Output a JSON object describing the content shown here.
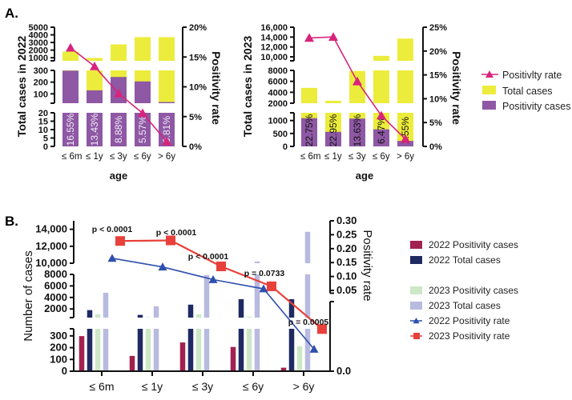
{
  "panel_labels": {
    "a": "A.",
    "b": "B."
  },
  "colors": {
    "total_yellow": "#ecec3c",
    "positive_purple": "#8e58a4",
    "rate_magenta": "#d8247c",
    "b_2022_pos": "#a3214f",
    "b_2022_total": "#1f2a62",
    "b_2023_pos": "#cde8c6",
    "b_2023_total": "#b8badf",
    "b_2022_rate": "#2f4fae",
    "b_2023_rate": "#e8403a"
  },
  "legend_a": [
    {
      "label": "Positivlty rate",
      "icon": "triangle-line"
    },
    {
      "label": "Total cases",
      "icon": "yellow-box"
    },
    {
      "label": "Positivity cases",
      "icon": "purple-box"
    }
  ],
  "legend_b": [
    {
      "label": "2022 Positivity cases",
      "icon": "box"
    },
    {
      "label": "2022 Total cases",
      "icon": "box"
    },
    {
      "label": "2023 Positivity cases",
      "icon": "box"
    },
    {
      "label": "2023 Total cases",
      "icon": "box"
    },
    {
      "label": "2022 Positivity rate",
      "icon": "triangle-line"
    },
    {
      "label": "2023 Positivity rate",
      "icon": "square-line"
    }
  ],
  "chart_data": [
    {
      "type": "bar",
      "stacked_overlay": true,
      "broken_axis": true,
      "categories": [
        "≤ 6m",
        "≤ 1y",
        "≤ 3y",
        "≤ 6y",
        "> 6y"
      ],
      "xlabel": "age",
      "ylabel": "Total cases in 2022",
      "y2label": "Positivity rate",
      "yticks": [
        [
          "5000",
          "4000",
          "3000",
          "2000",
          "1000"
        ],
        [
          "300",
          "200",
          "100"
        ],
        [
          "20",
          "15",
          "10",
          "5",
          "0"
        ]
      ],
      "y2ticks": [
        "20%",
        "15%",
        "10%",
        "5%",
        "0%"
      ],
      "y2lim": [
        0,
        20
      ],
      "series": [
        {
          "name": "Total cases",
          "values": [
            1800,
            970,
            2750,
            3700,
            3700
          ]
        },
        {
          "name": "Positivity cases",
          "values": [
            298,
            130,
            244,
            206,
            30
          ]
        },
        {
          "name": "Positivlty rate",
          "values": [
            16.55,
            13.43,
            8.88,
            5.57,
            0.81
          ]
        }
      ],
      "data_labels": [
        "16.55%",
        "13.43%",
        "8.88%",
        "5.57%",
        "0.81%"
      ]
    },
    {
      "type": "bar",
      "stacked_overlay": true,
      "broken_axis": true,
      "categories": [
        "≤ 6m",
        "≤ 1y",
        "≤ 3y",
        "≤ 6y",
        "> 6y"
      ],
      "xlabel": "age",
      "ylabel": "Total cases in 2023",
      "y2label": "Positivity rate",
      "yticks": [
        [
          "16,000",
          "14,000",
          "12,000",
          "10,000"
        ],
        [
          "8000",
          "6000",
          "4000",
          "2000"
        ],
        [
          "1000",
          "500",
          "0"
        ]
      ],
      "y2ticks": [
        "25%",
        "20%",
        "15%",
        "10%",
        "5%",
        "0%"
      ],
      "y2lim": [
        0,
        25
      ],
      "series": [
        {
          "name": "Total cases",
          "values": [
            4800,
            2450,
            7900,
            10200,
            13700
          ]
        },
        {
          "name": "Positivity cases",
          "values": [
            1092,
            562,
            1077,
            660,
            212
          ]
        },
        {
          "name": "Positivlty rate",
          "values": [
            22.75,
            22.95,
            13.63,
            6.47,
            1.55
          ]
        }
      ],
      "data_labels": [
        "22.75%",
        "22.95%",
        "13.63%",
        "6.47%",
        "1.55%"
      ]
    },
    {
      "type": "bar",
      "broken_axis": true,
      "categories": [
        "≤ 6m",
        "≤ 1y",
        "≤ 3y",
        "≤ 6y",
        "> 6y"
      ],
      "ylabel": "Number of cases",
      "y2label": "Positivity rate",
      "yticks": [
        [
          "14,000",
          "12,000",
          "10,000"
        ],
        [
          "8000",
          "6000",
          "4000",
          "2000"
        ],
        [
          "300",
          "200",
          "100",
          "0"
        ]
      ],
      "y2ticks": [
        "0.30",
        "0.25",
        "0.20",
        "0.15",
        "0.10",
        "0.05",
        "0.0"
      ],
      "series": [
        {
          "name": "2022 Positivity cases",
          "values": [
            298,
            130,
            244,
            206,
            30
          ]
        },
        {
          "name": "2022 Total cases",
          "values": [
            1800,
            970,
            2750,
            3700,
            3700
          ]
        },
        {
          "name": "2023 Positivity cases",
          "values": [
            1092,
            562,
            1077,
            660,
            212
          ]
        },
        {
          "name": "2023 Total cases",
          "values": [
            4800,
            2450,
            7900,
            10200,
            13700
          ]
        },
        {
          "name": "2022 Positivity rate",
          "values": [
            0.1655,
            0.1343,
            0.0888,
            0.0557,
            0.0081
          ]
        },
        {
          "name": "2023 Positivity rate",
          "values": [
            0.2275,
            0.2295,
            0.1363,
            0.0647,
            0.0155
          ]
        }
      ],
      "p_values": [
        "p < 0.0001",
        "p < 0.0001",
        "p < 0.0001",
        "p = 0.0733",
        "p = 0.0005"
      ]
    }
  ]
}
